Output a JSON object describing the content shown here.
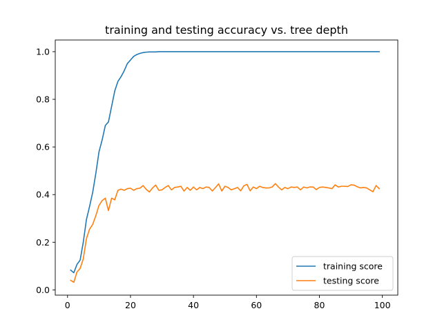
{
  "chart_data": {
    "type": "line",
    "title": "training and testing accuracy vs. tree depth",
    "xlabel": "",
    "ylabel": "",
    "xlim": [
      -3.9,
      104.9
    ],
    "ylim": [
      -0.022,
      1.049
    ],
    "x_ticks": [
      0,
      20,
      40,
      60,
      80,
      100
    ],
    "y_ticks": [
      0.0,
      0.2,
      0.4,
      0.6,
      0.8,
      1.0
    ],
    "x_tick_labels": [
      "0",
      "20",
      "40",
      "60",
      "80",
      "100"
    ],
    "y_tick_labels": [
      "0.0",
      "0.2",
      "0.4",
      "0.6",
      "0.8",
      "1.0"
    ],
    "grid": false,
    "legend_position": "lower-right",
    "x": [
      1,
      2,
      3,
      4,
      5,
      6,
      7,
      8,
      9,
      10,
      11,
      12,
      13,
      14,
      15,
      16,
      17,
      18,
      19,
      20,
      21,
      22,
      23,
      24,
      25,
      26,
      27,
      28,
      29,
      30,
      31,
      32,
      33,
      34,
      35,
      36,
      37,
      38,
      39,
      40,
      41,
      42,
      43,
      44,
      45,
      46,
      47,
      48,
      49,
      50,
      51,
      52,
      53,
      54,
      55,
      56,
      57,
      58,
      59,
      60,
      61,
      62,
      63,
      64,
      65,
      66,
      67,
      68,
      69,
      70,
      71,
      72,
      73,
      74,
      75,
      76,
      77,
      78,
      79,
      80,
      81,
      82,
      83,
      84,
      85,
      86,
      87,
      88,
      89,
      90,
      91,
      92,
      93,
      94,
      95,
      96,
      97,
      98,
      99
    ],
    "series": [
      {
        "name": "training score",
        "color": "#1f77b4",
        "values": [
          0.083,
          0.072,
          0.107,
          0.125,
          0.2,
          0.295,
          0.35,
          0.41,
          0.49,
          0.58,
          0.63,
          0.69,
          0.705,
          0.77,
          0.835,
          0.875,
          0.895,
          0.92,
          0.95,
          0.965,
          0.98,
          0.988,
          0.993,
          0.996,
          0.998,
          0.999,
          0.999,
          0.999,
          1.0,
          1.0,
          1.0,
          1.0,
          1.0,
          1.0,
          1.0,
          1.0,
          1.0,
          1.0,
          1.0,
          1.0,
          1.0,
          1.0,
          1.0,
          1.0,
          1.0,
          1.0,
          1.0,
          1.0,
          1.0,
          1.0,
          1.0,
          1.0,
          1.0,
          1.0,
          1.0,
          1.0,
          1.0,
          1.0,
          1.0,
          1.0,
          1.0,
          1.0,
          1.0,
          1.0,
          1.0,
          1.0,
          1.0,
          1.0,
          1.0,
          1.0,
          1.0,
          1.0,
          1.0,
          1.0,
          1.0,
          1.0,
          1.0,
          1.0,
          1.0,
          1.0,
          1.0,
          1.0,
          1.0,
          1.0,
          1.0,
          1.0,
          1.0,
          1.0,
          1.0,
          1.0,
          1.0,
          1.0,
          1.0,
          1.0,
          1.0,
          1.0,
          1.0,
          1.0,
          1.0
        ]
      },
      {
        "name": "testing score",
        "color": "#ff7f0e",
        "values": [
          0.04,
          0.032,
          0.075,
          0.09,
          0.13,
          0.215,
          0.255,
          0.275,
          0.312,
          0.355,
          0.375,
          0.385,
          0.333,
          0.385,
          0.378,
          0.418,
          0.423,
          0.418,
          0.425,
          0.427,
          0.418,
          0.425,
          0.427,
          0.438,
          0.422,
          0.411,
          0.428,
          0.44,
          0.418,
          0.42,
          0.43,
          0.438,
          0.42,
          0.43,
          0.432,
          0.435,
          0.415,
          0.43,
          0.418,
          0.432,
          0.42,
          0.43,
          0.425,
          0.432,
          0.43,
          0.415,
          0.43,
          0.445,
          0.415,
          0.435,
          0.43,
          0.42,
          0.425,
          0.43,
          0.416,
          0.437,
          0.443,
          0.416,
          0.432,
          0.425,
          0.435,
          0.43,
          0.428,
          0.428,
          0.432,
          0.446,
          0.432,
          0.42,
          0.43,
          0.425,
          0.432,
          0.43,
          0.432,
          0.42,
          0.432,
          0.428,
          0.432,
          0.432,
          0.421,
          0.43,
          0.432,
          0.43,
          0.428,
          0.425,
          0.441,
          0.432,
          0.435,
          0.435,
          0.434,
          0.441,
          0.44,
          0.433,
          0.428,
          0.43,
          0.428,
          0.42,
          0.412,
          0.438,
          0.425
        ]
      }
    ]
  }
}
